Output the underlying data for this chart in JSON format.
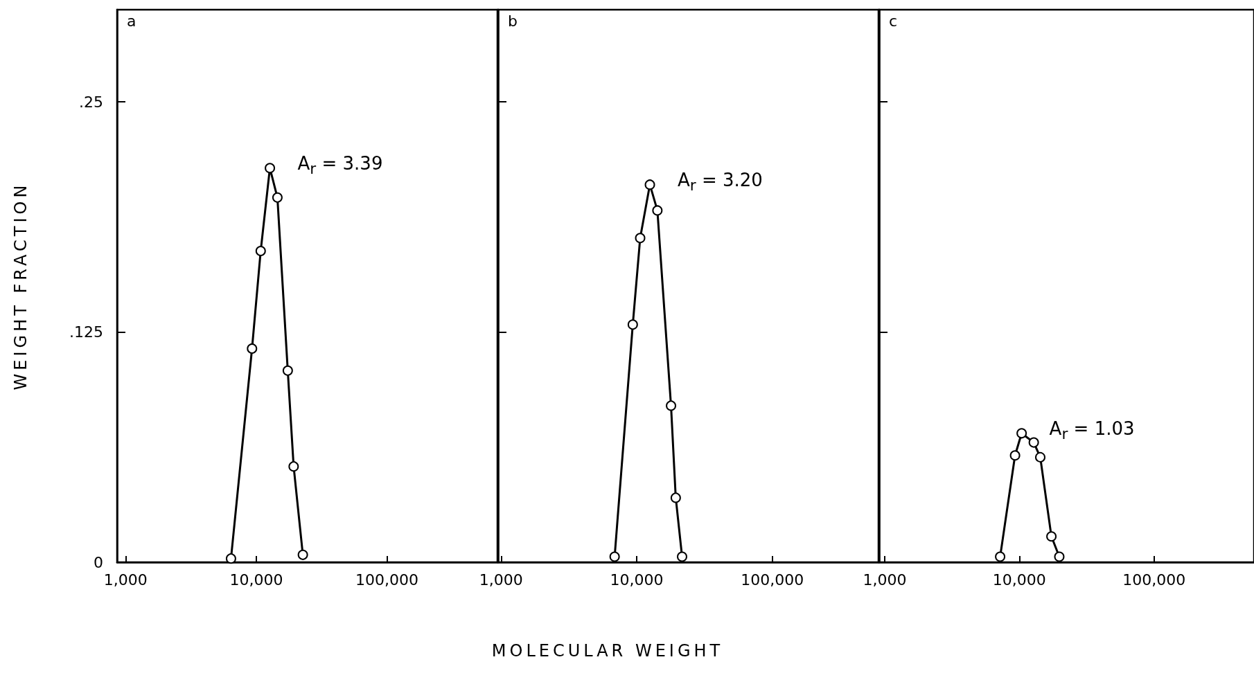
{
  "chart_data": [
    {
      "type": "line",
      "ylabel": "WEIGHT FRACTION",
      "annotations": [
        "a",
        "A$_{r}$ = 3.39"
      ],
      "log": "x",
      "marker": "circle",
      "line_style": "solid",
      "xlim": [
        860,
        700000
      ],
      "ylim": [
        0,
        0.3
      ],
      "xticks": [
        {
          "value": 1000,
          "label": "1,000"
        },
        {
          "value": 10000,
          "label": "10,000"
        },
        {
          "value": 100000,
          "label": "100,000"
        }
      ],
      "yticks": [
        0,
        {
          "value": 0.125,
          "label": ".125"
        },
        {
          "value": 0.25,
          "label": ".25"
        }
      ],
      "series": [
        {
          "color": "#000000",
          "x": [
            6400,
            9270,
            10800,
            12700,
            14500,
            17400,
            19300,
            22700
          ],
          "values": [
            0.002,
            0.116,
            0.169,
            0.214,
            0.198,
            0.104,
            0.052,
            0.004
          ]
        }
      ]
    },
    {
      "type": "line",
      "xlabel": "MOLECULAR WEIGHT",
      "annotations": [
        "b",
        "A$_{r}$ = 3.20"
      ],
      "log": "x",
      "marker": "circle",
      "line_style": "solid",
      "tick_labels": "x",
      "xlim": [
        950,
        607000
      ],
      "ylim": [
        0,
        0.3
      ],
      "xticks": [
        {
          "value": 1000,
          "label": "1,000"
        },
        {
          "value": 10000,
          "label": "10,000"
        },
        {
          "value": 100000,
          "label": "100,000"
        }
      ],
      "yticks": [
        0,
        0.125,
        0.25
      ],
      "series": [
        {
          "color": "#000000",
          "x": [
            6870,
            9350,
            10600,
            12500,
            14200,
            17900,
            19400,
            21600
          ],
          "values": [
            0.003,
            0.129,
            0.176,
            0.205,
            0.191,
            0.085,
            0.035,
            0.003
          ]
        }
      ]
    },
    {
      "type": "line",
      "annotations": [
        "c",
        "A$_{r}$ = 1.03"
      ],
      "log": "x",
      "marker": "circle",
      "line_style": "solid",
      "tick_labels": "x",
      "xlim": [
        910,
        553000
      ],
      "ylim": [
        0,
        0.3
      ],
      "xticks": [
        {
          "value": 1000,
          "label": "1,000"
        },
        {
          "value": 10000,
          "label": "10,000"
        },
        {
          "value": 100000,
          "label": "100,000"
        }
      ],
      "yticks": [
        0,
        0.125,
        0.25
      ],
      "series": [
        {
          "color": "#000000",
          "x": [
            7200,
            9290,
            10400,
            12800,
            14300,
            17300,
            19800
          ],
          "values": [
            0.003,
            0.058,
            0.07,
            0.065,
            0.057,
            0.014,
            0.003
          ]
        }
      ]
    }
  ]
}
